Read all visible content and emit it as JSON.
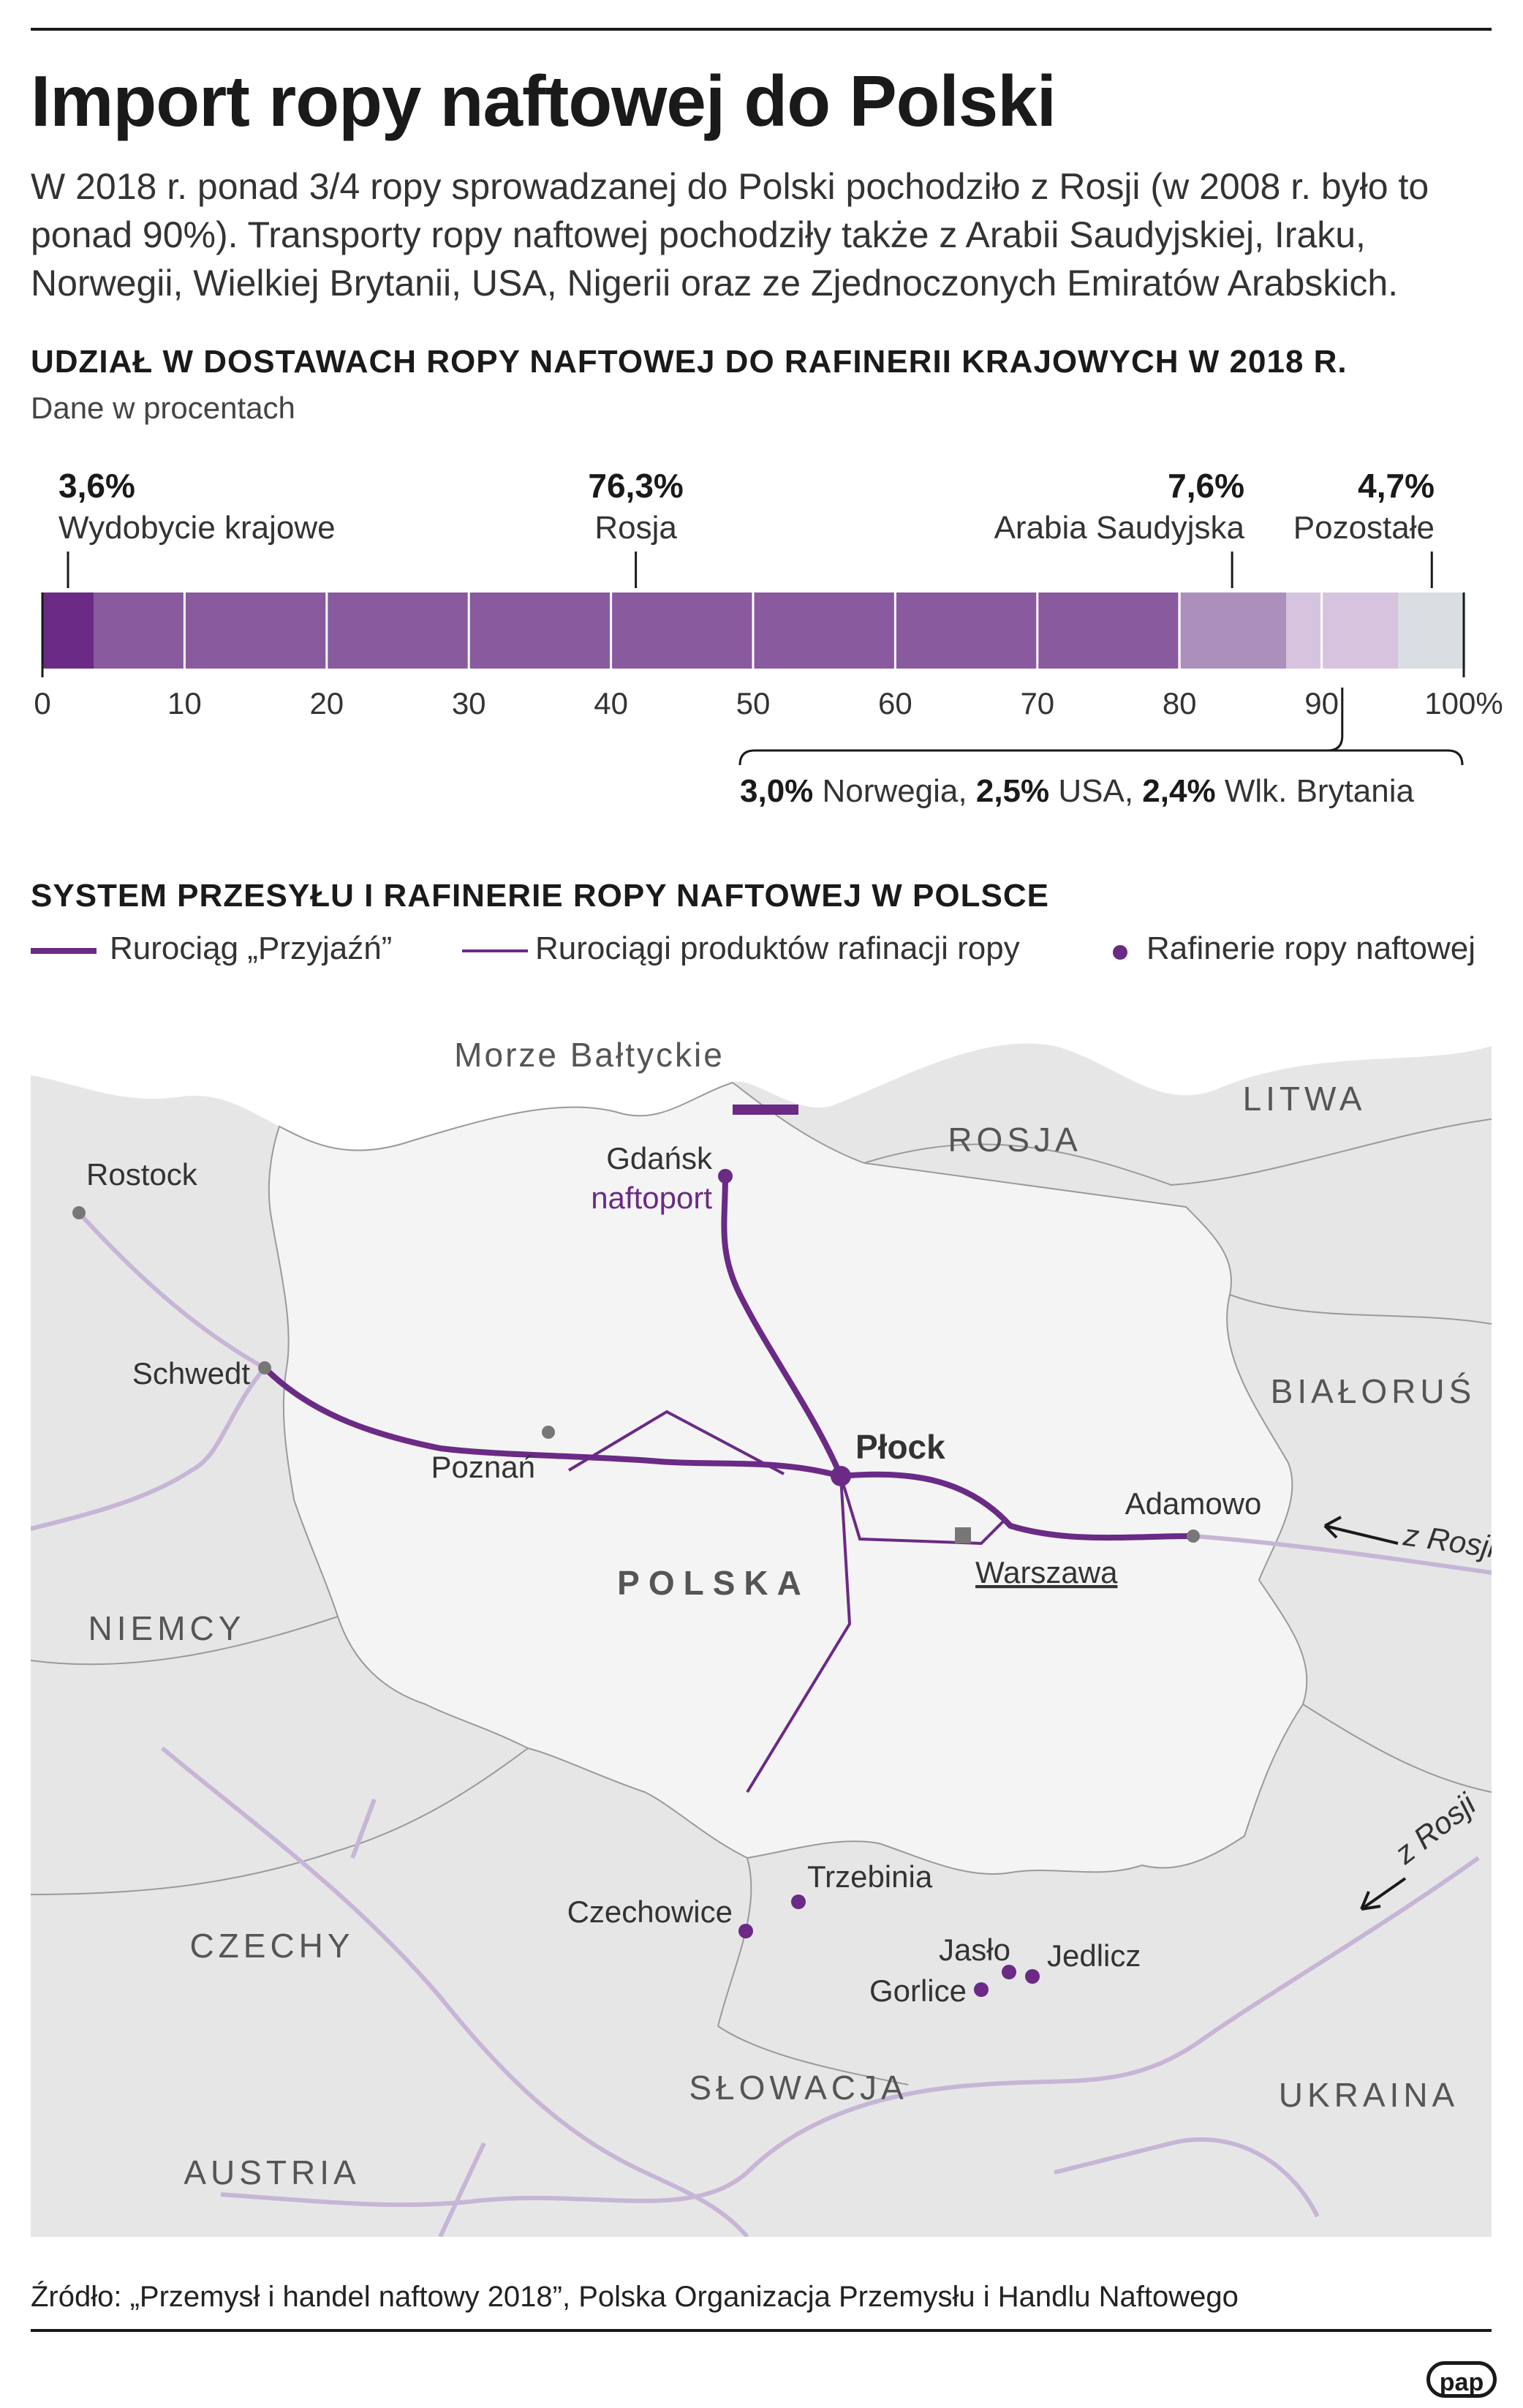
{
  "title": "Import ropy naftowej do Polski",
  "lead": "W 2018 r. ponad 3/4 ropy sprowadzanej do Polski pochodziło z Rosji (w 2008 r. było to ponad 90%). Transporty ropy naftowej pochodziły także z Arabii Saudyjskiej, Iraku, Norwegii, Wielkiej Brytanii, USA, Nigerii oraz ze Zjednoczonych Emiratów Arabskich.",
  "colors": {
    "domestic": "#6a2a85",
    "russia": "#8a5a9e",
    "saudi": "#ad8fbc",
    "others_group": "#d6c4de",
    "rest": "#d9dee2",
    "pipeline": "#6a2a85",
    "pipeline_light": "#c7b5d6",
    "map_land": "#eaeaea",
    "map_poland": "#f3f3f3"
  },
  "chart_data": {
    "type": "bar",
    "title": "UDZIAŁ W DOSTAWACH ROPY NAFTOWEJ DO RAFINERII KRAJOWYCH W 2018 R.",
    "subtitle": "Dane w procentach",
    "orientation": "horizontal-stacked",
    "xlim": [
      0,
      100
    ],
    "ticks": [
      "0",
      "10",
      "20",
      "30",
      "40",
      "50",
      "60",
      "70",
      "80",
      "90",
      "100%"
    ],
    "segments": [
      {
        "name": "Wydobycie krajowe",
        "value": 3.6,
        "label": "3,6%",
        "color_key": "domestic"
      },
      {
        "name": "Rosja",
        "value": 76.3,
        "label": "76,3%",
        "color_key": "russia"
      },
      {
        "name": "Arabia Saudyjska",
        "value": 7.6,
        "label": "7,6%",
        "color_key": "saudi"
      },
      {
        "name": "Norwegia, USA, Wlk. Brytania",
        "value": 7.9,
        "label": "",
        "color_key": "others_group"
      },
      {
        "name": "Pozostałe",
        "value": 4.7,
        "label": "4,7%",
        "color_key": "rest"
      }
    ],
    "brace_note": {
      "parts": [
        {
          "value": "3,0%",
          "name": " Norwegia, "
        },
        {
          "value": "2,5%",
          "name": " USA, "
        },
        {
          "value": "2,4%",
          "name": " Wlk. Brytania"
        }
      ]
    }
  },
  "map": {
    "title": "SYSTEM PRZESYŁU I RAFINERIE ROPY NAFTOWEJ W POLSCE",
    "legend": {
      "przyjazn": "Rurociąg „Przyjaźń”",
      "products": "Rurociągi produktów rafinacji ropy",
      "refineries": "Rafinerie ropy naftowej"
    },
    "sea": "Morze Bałtyckie",
    "countries": {
      "litwa": "LITWA",
      "rosja": "ROSJA",
      "bialorus": "BIAŁORUŚ",
      "niemcy": "NIEMCY",
      "polska": "POLSKA",
      "czechy": "CZECHY",
      "slowacja": "SŁOWACJA",
      "ukraina": "UKRAINA",
      "austria": "AUSTRIA"
    },
    "places": {
      "rostock": "Rostock",
      "gdansk": "Gdańsk",
      "naftoport": "naftoport",
      "schwedt": "Schwedt",
      "plock": "Płock",
      "poznan": "Poznań",
      "warszawa": "Warszawa",
      "adamowo": "Adamowo",
      "trzebinia": "Trzebinia",
      "czechowice": "Czechowice",
      "jaslo": "Jasło",
      "jedlicz": "Jedlicz",
      "gorlice": "Gorlice",
      "z_rosji_1": "z Rosji",
      "z_rosji_2": "z Rosji"
    }
  },
  "source": "Źródło: „Przemysł i handel naftowy 2018”, Polska Organizacja Przemysłu i Handlu Naftowego",
  "logo": "pap"
}
